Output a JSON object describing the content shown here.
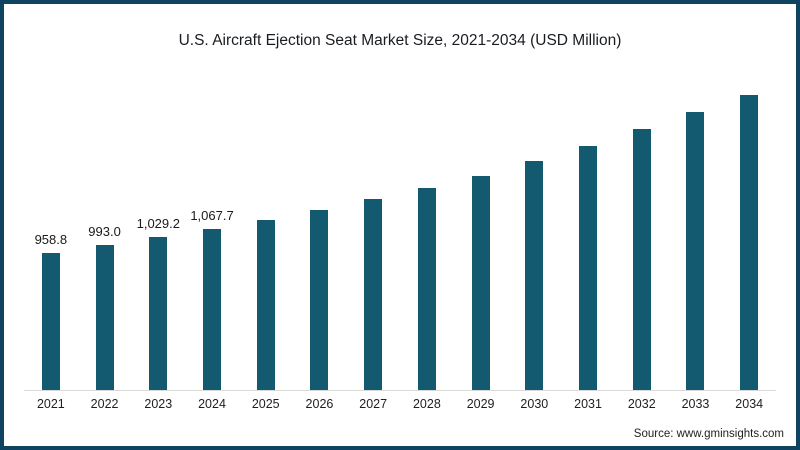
{
  "page": {
    "source_text": "Source: www.gminsights.com"
  },
  "chart_data": {
    "type": "bar",
    "title": "U.S. Aircraft Ejection Seat Market Size, 2021-2034 (USD Million)",
    "xlabel": "",
    "ylabel": "",
    "categories": [
      "2021",
      "2022",
      "2023",
      "2024",
      "2025",
      "2026",
      "2027",
      "2028",
      "2029",
      "2030",
      "2031",
      "2032",
      "2033",
      "2034"
    ],
    "values": [
      958.8,
      993.0,
      1029.2,
      1067.7,
      1106.2,
      1150.5,
      1199.2,
      1247.9,
      1302.3,
      1367.4,
      1435.1,
      1509.1,
      1585.6,
      1662.7
    ],
    "data_labels": [
      "958.8",
      "993.0",
      "1,029.2",
      "1,067.7",
      "",
      "",
      "",
      "",
      "",
      "",
      "",
      "",
      "",
      ""
    ],
    "ylim": [
      350,
      1750
    ],
    "grid": false,
    "legend_position": "none",
    "bar_color": "#135A70",
    "axis_line_color": "#D9D9D9",
    "border_color": "#0E4462"
  }
}
